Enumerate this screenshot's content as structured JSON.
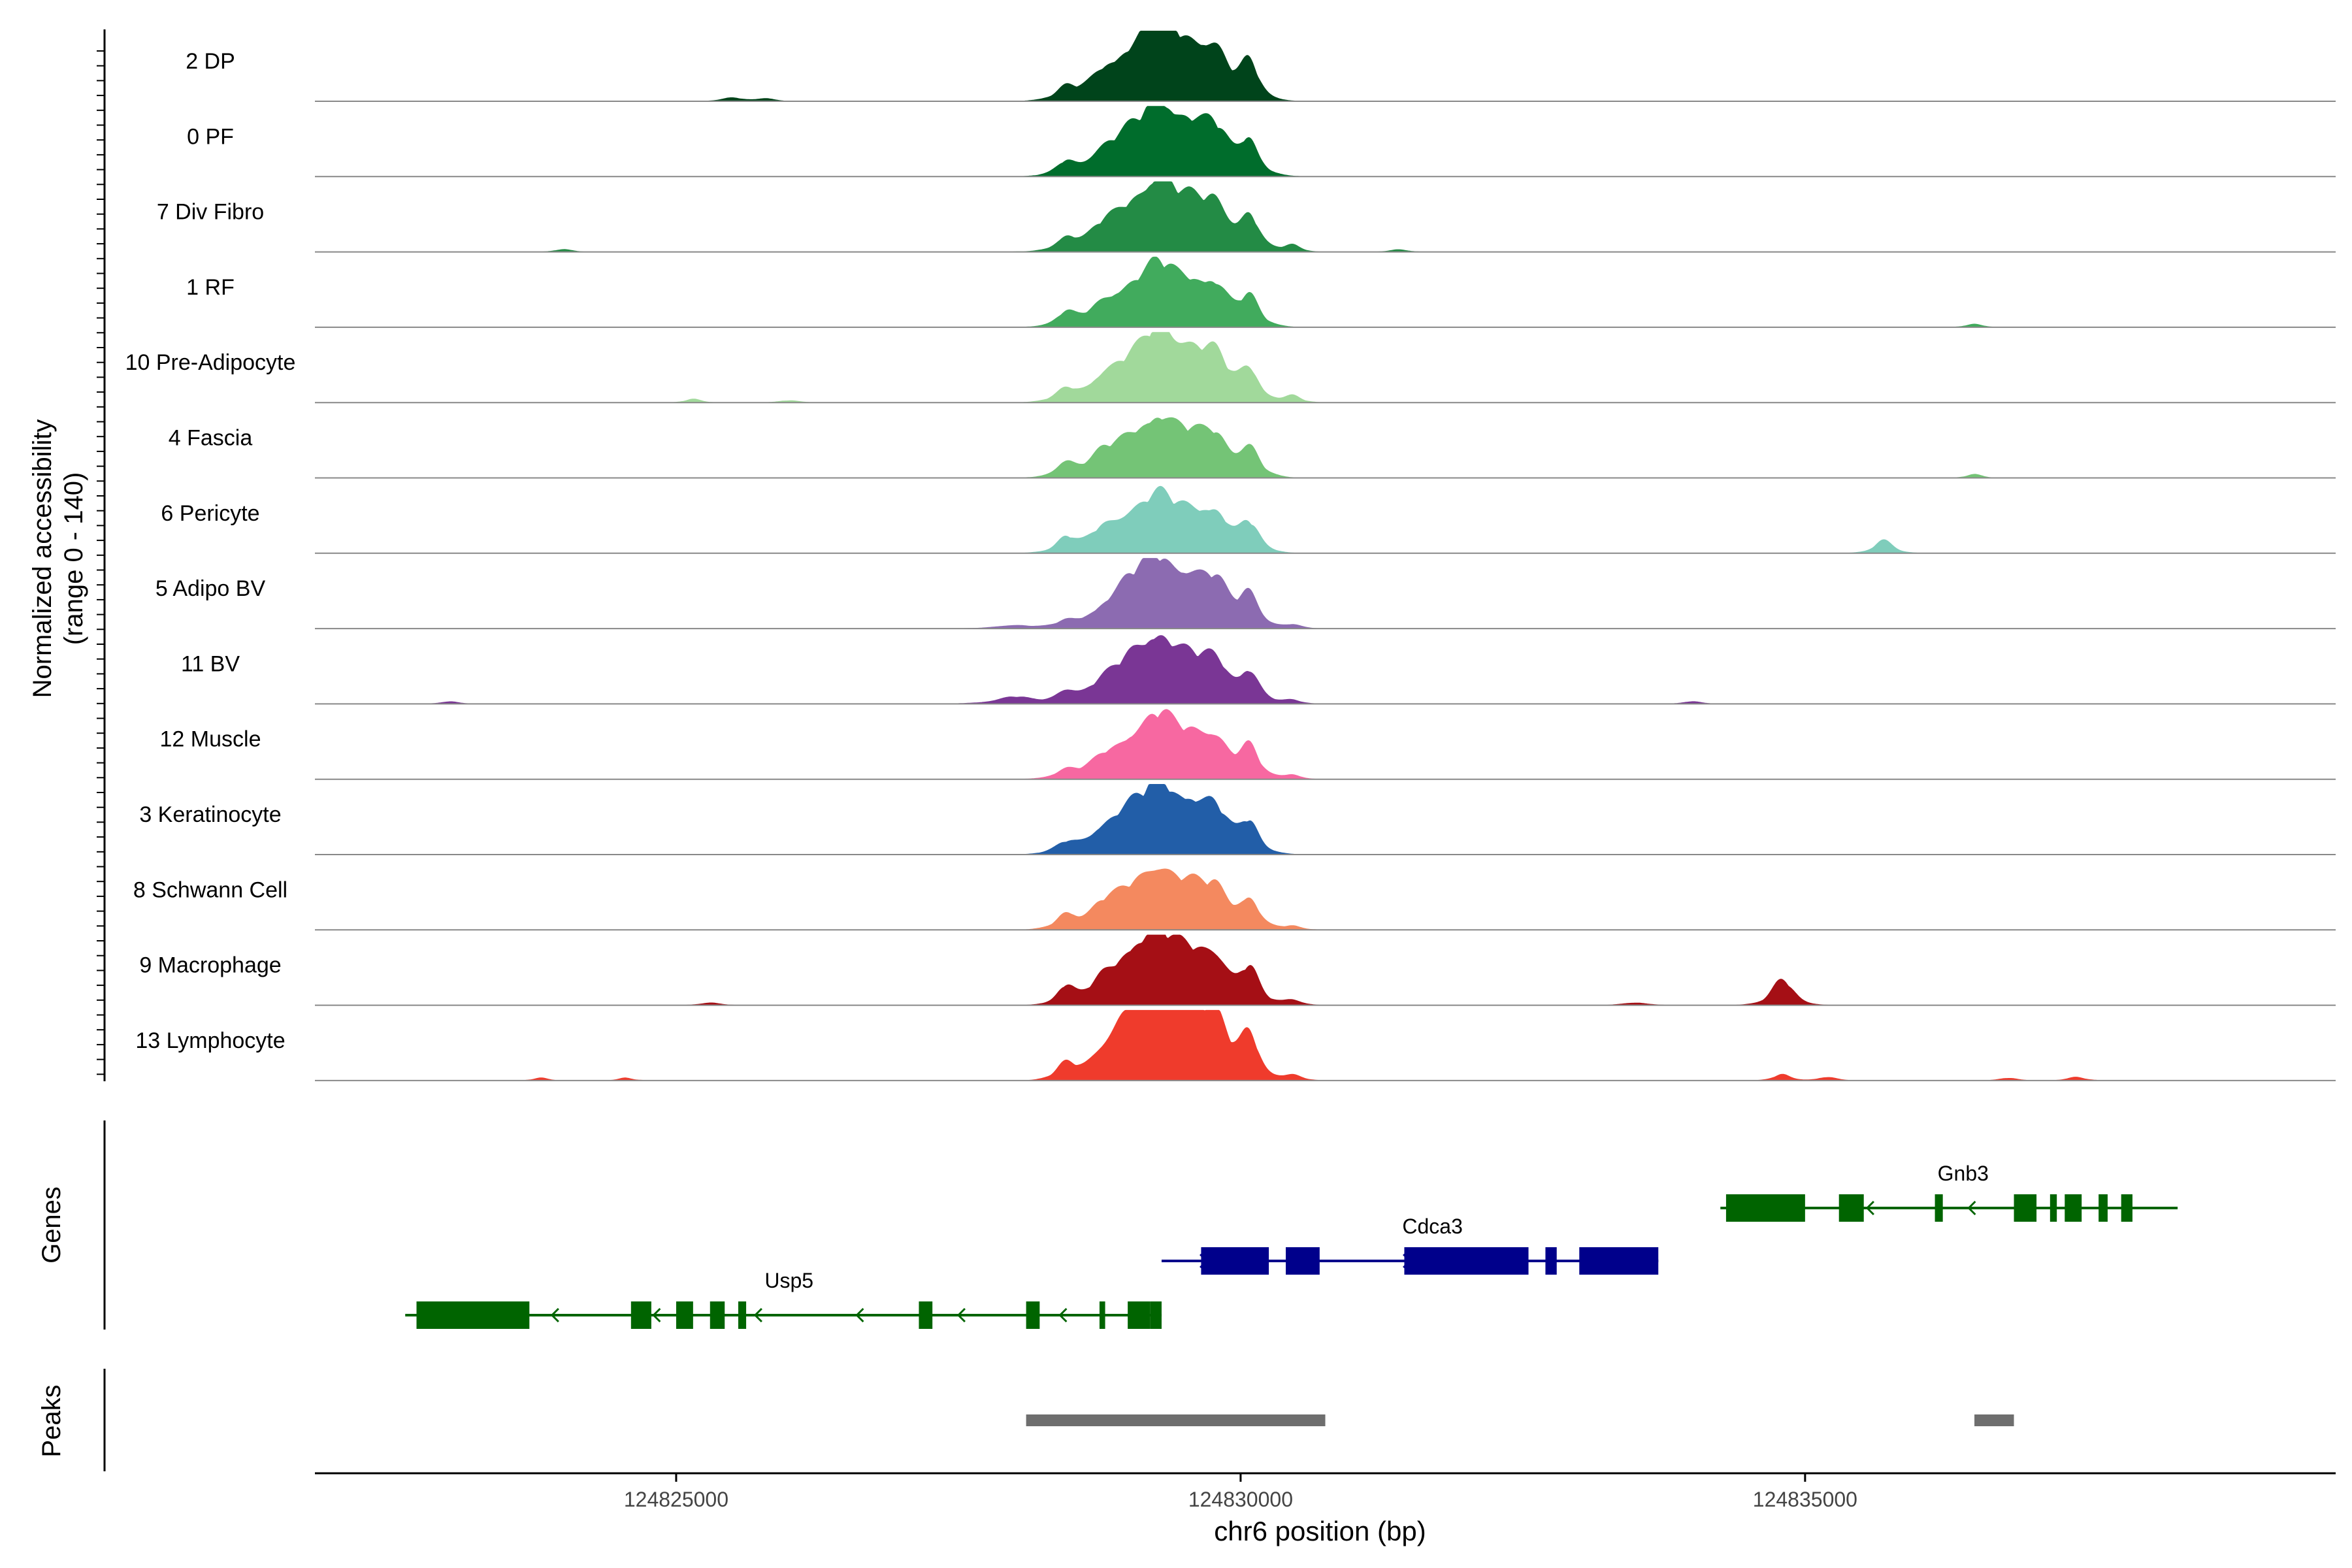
{
  "chart_data": {
    "type": "area",
    "title": "",
    "xlabel": "chr6 position (bp)",
    "x_range": [
      124821800,
      124839700
    ],
    "x_ticks": [
      124825000,
      124830000,
      124835000
    ],
    "x_tick_labels": [
      "124825000",
      "124830000",
      "124835000"
    ],
    "ylabel_line1": "Normalized accessibility",
    "ylabel_line2": "(range 0 - 140)",
    "ylim": [
      0,
      140
    ],
    "genes_label": "Genes",
    "peaks_label": "Peaks",
    "series": [
      {
        "name": "2 DP",
        "color": "#00441b",
        "peaks": [
          [
            124828450,
            140,
            8,
            22
          ],
          [
            124828770,
            170,
            12,
            26
          ],
          [
            124829050,
            350,
            50,
            90
          ],
          [
            124829280,
            210,
            35,
            95
          ],
          [
            124829560,
            330,
            45,
            100
          ],
          [
            124829790,
            180,
            22,
            62
          ],
          [
            124830080,
            150,
            18,
            72
          ],
          [
            124825500,
            150,
            4,
            8
          ],
          [
            124825800,
            120,
            3,
            7
          ]
        ]
      },
      {
        "name": "0 PF",
        "color": "#006d2c",
        "peaks": [
          [
            124828450,
            140,
            8,
            25
          ],
          [
            124828770,
            170,
            10,
            22
          ],
          [
            124829050,
            350,
            45,
            85
          ],
          [
            124829280,
            210,
            30,
            80
          ],
          [
            124829560,
            330,
            45,
            95
          ],
          [
            124829790,
            180,
            22,
            58
          ],
          [
            124830080,
            150,
            18,
            70
          ]
        ]
      },
      {
        "name": "7 Div Fibro",
        "color": "#238b45",
        "peaks": [
          [
            124828450,
            140,
            8,
            25
          ],
          [
            124828770,
            170,
            10,
            24
          ],
          [
            124829050,
            350,
            45,
            85
          ],
          [
            124829280,
            210,
            30,
            80
          ],
          [
            124829560,
            330,
            45,
            90
          ],
          [
            124829790,
            180,
            20,
            60
          ],
          [
            124830080,
            150,
            18,
            68
          ],
          [
            124830460,
            120,
            6,
            15
          ],
          [
            124831400,
            120,
            3,
            6
          ],
          [
            124824000,
            120,
            3,
            6
          ]
        ]
      },
      {
        "name": "1 RF",
        "color": "#41ab5d",
        "peaks": [
          [
            124828450,
            140,
            8,
            25
          ],
          [
            124828770,
            170,
            10,
            20
          ],
          [
            124829050,
            350,
            40,
            75
          ],
          [
            124829280,
            210,
            25,
            65
          ],
          [
            124829560,
            330,
            40,
            80
          ],
          [
            124829790,
            180,
            18,
            50
          ],
          [
            124830080,
            150,
            15,
            55
          ],
          [
            124836500,
            120,
            3,
            8
          ]
        ]
      },
      {
        "name": "10 Pre-Adipocyte",
        "color": "#a1d99b",
        "peaks": [
          [
            124828450,
            140,
            8,
            22
          ],
          [
            124828770,
            170,
            10,
            22
          ],
          [
            124829050,
            350,
            45,
            80
          ],
          [
            124829280,
            210,
            30,
            85
          ],
          [
            124829560,
            330,
            45,
            95
          ],
          [
            124829790,
            180,
            20,
            55
          ],
          [
            124830080,
            150,
            18,
            62
          ],
          [
            124830460,
            120,
            6,
            15
          ],
          [
            124825150,
            120,
            3,
            8
          ],
          [
            124826000,
            150,
            2,
            5
          ]
        ]
      },
      {
        "name": "4 Fascia",
        "color": "#74c476",
        "peaks": [
          [
            124828450,
            140,
            8,
            30
          ],
          [
            124828770,
            170,
            10,
            25
          ],
          [
            124829050,
            350,
            40,
            75
          ],
          [
            124829280,
            210,
            25,
            60
          ],
          [
            124829560,
            330,
            40,
            78
          ],
          [
            124829790,
            180,
            18,
            52
          ],
          [
            124830080,
            150,
            15,
            58
          ],
          [
            124836500,
            120,
            3,
            8
          ]
        ]
      },
      {
        "name": "6 Pericyte",
        "color": "#7fcdbb",
        "peaks": [
          [
            124828450,
            140,
            8,
            28
          ],
          [
            124828770,
            170,
            10,
            24
          ],
          [
            124829050,
            350,
            38,
            72
          ],
          [
            124829280,
            210,
            22,
            55
          ],
          [
            124829560,
            330,
            40,
            75
          ],
          [
            124829790,
            180,
            16,
            48
          ],
          [
            124830080,
            150,
            15,
            55
          ],
          [
            124835700,
            150,
            7,
            30
          ]
        ]
      },
      {
        "name": "5 Adipo BV",
        "color": "#8c6bb1",
        "peaks": [
          [
            124828000,
            250,
            4,
            8
          ],
          [
            124828450,
            140,
            6,
            12
          ],
          [
            124828770,
            170,
            8,
            14
          ],
          [
            124829050,
            300,
            48,
            95
          ],
          [
            124829280,
            210,
            25,
            70
          ],
          [
            124829560,
            330,
            48,
            98
          ],
          [
            124829790,
            180,
            22,
            55
          ],
          [
            124830080,
            150,
            18,
            65
          ],
          [
            124830460,
            120,
            4,
            8
          ]
        ]
      },
      {
        "name": "11 BV",
        "color": "#7a3695",
        "peaks": [
          [
            124828000,
            250,
            8,
            16
          ],
          [
            124828450,
            140,
            10,
            24
          ],
          [
            124828770,
            170,
            12,
            22
          ],
          [
            124829050,
            300,
            45,
            88
          ],
          [
            124829280,
            210,
            28,
            75
          ],
          [
            124829560,
            330,
            42,
            85
          ],
          [
            124829790,
            180,
            20,
            52
          ],
          [
            124830080,
            150,
            18,
            60
          ],
          [
            124830460,
            120,
            4,
            8
          ],
          [
            124823000,
            120,
            3,
            6
          ],
          [
            124834000,
            120,
            3,
            6
          ]
        ]
      },
      {
        "name": "12 Muscle",
        "color": "#f768a1",
        "peaks": [
          [
            124828450,
            140,
            6,
            14
          ],
          [
            124828770,
            170,
            8,
            18
          ],
          [
            124829050,
            350,
            38,
            75
          ],
          [
            124829280,
            210,
            25,
            68
          ],
          [
            124829560,
            330,
            40,
            80
          ],
          [
            124829790,
            180,
            18,
            50
          ],
          [
            124830080,
            150,
            15,
            60
          ],
          [
            124830460,
            120,
            4,
            10
          ]
        ]
      },
      {
        "name": "3 Keratinocyte",
        "color": "#225ea8",
        "peaks": [
          [
            124828450,
            140,
            8,
            18
          ],
          [
            124828770,
            170,
            10,
            20
          ],
          [
            124829050,
            350,
            45,
            90
          ],
          [
            124829280,
            210,
            25,
            68
          ],
          [
            124829560,
            330,
            45,
            95
          ],
          [
            124829790,
            180,
            18,
            52
          ],
          [
            124830080,
            150,
            15,
            60
          ]
        ]
      },
      {
        "name": "8 Schwann Cell",
        "color": "#f4895f",
        "peaks": [
          [
            124828450,
            140,
            8,
            30
          ],
          [
            124828770,
            170,
            10,
            26
          ],
          [
            124829050,
            350,
            40,
            78
          ],
          [
            124829280,
            210,
            25,
            62
          ],
          [
            124829560,
            330,
            40,
            80
          ],
          [
            124829790,
            180,
            18,
            50
          ],
          [
            124830080,
            150,
            15,
            58
          ],
          [
            124830460,
            120,
            4,
            8
          ]
        ]
      },
      {
        "name": "9 Macrophage",
        "color": "#a50f15",
        "peaks": [
          [
            124828450,
            140,
            10,
            38
          ],
          [
            124828770,
            170,
            12,
            30
          ],
          [
            124829050,
            300,
            45,
            100
          ],
          [
            124829280,
            210,
            30,
            80
          ],
          [
            124829560,
            330,
            45,
            100
          ],
          [
            124829790,
            180,
            22,
            60
          ],
          [
            124830080,
            150,
            18,
            68
          ],
          [
            124830460,
            120,
            6,
            12
          ],
          [
            124834800,
            180,
            12,
            55
          ],
          [
            124825300,
            120,
            4,
            6
          ],
          [
            124833500,
            150,
            4,
            6
          ]
        ]
      },
      {
        "name": "13 Lymphocyte",
        "color": "#ef3b2c",
        "peaks": [
          [
            124828450,
            140,
            12,
            32
          ],
          [
            124828770,
            170,
            14,
            28
          ],
          [
            124829050,
            300,
            55,
            140
          ],
          [
            124829280,
            210,
            45,
            110
          ],
          [
            124829560,
            330,
            55,
            135
          ],
          [
            124829790,
            180,
            28,
            75
          ],
          [
            124830080,
            150,
            22,
            85
          ],
          [
            124830460,
            120,
            6,
            12
          ],
          [
            124834800,
            120,
            6,
            15
          ],
          [
            124835200,
            120,
            4,
            8
          ],
          [
            124823800,
            100,
            3,
            6
          ],
          [
            124824550,
            100,
            3,
            6
          ],
          [
            124836800,
            120,
            3,
            6
          ],
          [
            124837400,
            120,
            4,
            8
          ]
        ]
      }
    ],
    "genes": [
      {
        "name": "Usp5",
        "strand": "-",
        "color": "#006400",
        "row": 2,
        "start": 124822600,
        "end": 124829300,
        "label_x": 124826000,
        "exons": [
          [
            124822700,
            124823700
          ],
          [
            124824600,
            124824780
          ],
          [
            124825000,
            124825150
          ],
          [
            124825300,
            124825430
          ],
          [
            124825550,
            124825620
          ],
          [
            124827150,
            124827270
          ],
          [
            124829000,
            124829200
          ],
          [
            124828100,
            124828220
          ],
          [
            124828750,
            124828800
          ],
          [
            124829200,
            124829300
          ]
        ]
      },
      {
        "name": "Cdca3",
        "strand": "+",
        "color": "#00008b",
        "row": 1,
        "start": 124829300,
        "end": 124833700,
        "label_x": 124831700,
        "exons": [
          [
            124829650,
            124830250
          ],
          [
            124830400,
            124830700
          ],
          [
            124831450,
            124832550
          ],
          [
            124832700,
            124832800
          ],
          [
            124833000,
            124833700
          ]
        ]
      },
      {
        "name": "Gnb3",
        "strand": "-",
        "color": "#006400",
        "row": 0,
        "start": 124834250,
        "end": 124838300,
        "label_x": 124836400,
        "exons": [
          [
            124834300,
            124835000
          ],
          [
            124835300,
            124835520
          ],
          [
            124836150,
            124836220
          ],
          [
            124836850,
            124837050
          ],
          [
            124837170,
            124837230
          ],
          [
            124837300,
            124837450
          ],
          [
            124837600,
            124837680
          ],
          [
            124837800,
            124837900
          ]
        ]
      }
    ],
    "peaks_track": [
      [
        124828100,
        124830750
      ],
      [
        124836500,
        124836850
      ]
    ]
  }
}
